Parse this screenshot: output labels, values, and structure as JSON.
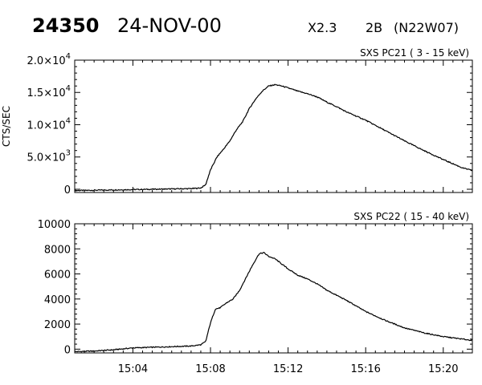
{
  "header": {
    "event_number": "24350",
    "date": "24-NOV-00",
    "goes_class": "X2.3",
    "optical_class": "2B",
    "location": "(N22W07)"
  },
  "colors": {
    "line": "#000000",
    "background": "#ffffff"
  },
  "chart_data": [
    {
      "type": "line",
      "title": "SXS PC21  (  3 - 15 keV)",
      "ylabel": "CTS/SEC",
      "xlabel": "",
      "xlim": [
        "15:01:00",
        "15:21:30"
      ],
      "ylim": [
        -500,
        20000
      ],
      "x_ticks": [
        "15:04",
        "15:08",
        "15:12",
        "15:16",
        "15:20"
      ],
      "y_ticks": [
        {
          "value": 0,
          "mantissa": "0",
          "exp": ""
        },
        {
          "value": 5000,
          "mantissa": "5.0×10",
          "exp": "3"
        },
        {
          "value": 10000,
          "mantissa": "1.0×10",
          "exp": "4"
        },
        {
          "value": 15000,
          "mantissa": "1.5×10",
          "exp": "4"
        },
        {
          "value": 20000,
          "mantissa": "2.0×10",
          "exp": "4"
        }
      ],
      "grid": false,
      "series": [
        {
          "x": [
            "15:01:00",
            "15:02:00",
            "15:03:00",
            "15:04:00",
            "15:05:00",
            "15:06:00",
            "15:07:00",
            "15:07:30",
            "15:07:45",
            "15:08:00",
            "15:08:20",
            "15:08:40",
            "15:09:00",
            "15:09:20",
            "15:09:40",
            "15:10:00",
            "15:10:20",
            "15:10:40",
            "15:11:00",
            "15:11:20",
            "15:11:40",
            "15:12:00",
            "15:12:30",
            "15:13:00",
            "15:13:30",
            "15:14:00",
            "15:14:30",
            "15:15:00",
            "15:16:00",
            "15:17:00",
            "15:18:00",
            "15:19:00",
            "15:20:00",
            "15:21:00",
            "15:21:30"
          ],
          "values": [
            -200,
            -150,
            -100,
            -50,
            0,
            50,
            100,
            200,
            700,
            3000,
            5000,
            6200,
            7500,
            9200,
            10500,
            12500,
            14000,
            15200,
            16000,
            16200,
            16000,
            15700,
            15200,
            14800,
            14300,
            13500,
            12800,
            12000,
            10700,
            9100,
            7500,
            6000,
            4600,
            3300,
            2900
          ]
        }
      ]
    },
    {
      "type": "line",
      "title": "SXS PC22  ( 15 - 40 keV)",
      "ylabel": "",
      "xlabel": "",
      "xlim": [
        "15:01:00",
        "15:21:30"
      ],
      "ylim": [
        -300,
        10000
      ],
      "x_ticks": [
        "15:04",
        "15:08",
        "15:12",
        "15:16",
        "15:20"
      ],
      "y_ticks": [
        {
          "value": 0,
          "mantissa": "0",
          "exp": ""
        },
        {
          "value": 2000,
          "mantissa": "2000",
          "exp": ""
        },
        {
          "value": 4000,
          "mantissa": "4000",
          "exp": ""
        },
        {
          "value": 6000,
          "mantissa": "6000",
          "exp": ""
        },
        {
          "value": 8000,
          "mantissa": "8000",
          "exp": ""
        },
        {
          "value": 10000,
          "mantissa": "10000",
          "exp": ""
        }
      ],
      "grid": false,
      "series": [
        {
          "x": [
            "15:01:00",
            "15:02:00",
            "15:03:00",
            "15:04:00",
            "15:05:00",
            "15:06:00",
            "15:07:00",
            "15:07:30",
            "15:07:45",
            "15:08:00",
            "15:08:15",
            "15:08:30",
            "15:08:50",
            "15:09:10",
            "15:09:30",
            "15:09:50",
            "15:10:10",
            "15:10:30",
            "15:10:45",
            "15:11:00",
            "15:11:20",
            "15:11:40",
            "15:12:00",
            "15:12:30",
            "15:13:00",
            "15:13:30",
            "15:14:00",
            "15:14:30",
            "15:15:00",
            "15:16:00",
            "15:17:00",
            "15:18:00",
            "15:19:00",
            "15:20:00",
            "15:21:00",
            "15:21:30"
          ],
          "values": [
            -200,
            -150,
            -50,
            100,
            150,
            200,
            250,
            350,
            600,
            2100,
            3200,
            3300,
            3700,
            4000,
            4700,
            5700,
            6700,
            7600,
            7700,
            7400,
            7200,
            6800,
            6400,
            5900,
            5600,
            5200,
            4700,
            4300,
            3900,
            3000,
            2300,
            1700,
            1300,
            1000,
            800,
            700
          ]
        }
      ]
    }
  ]
}
